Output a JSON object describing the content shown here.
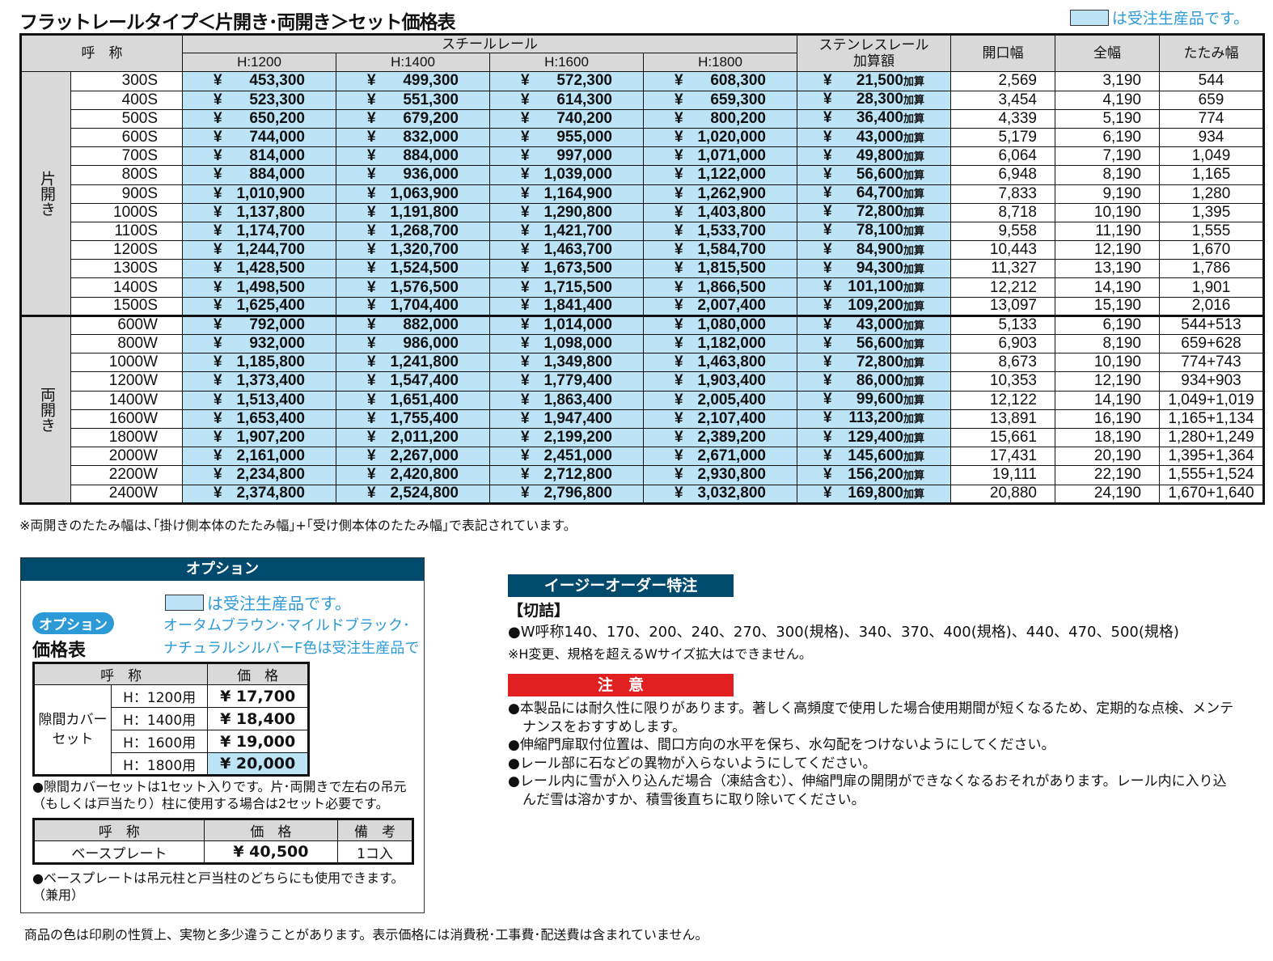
{
  "title": "フラットレールタイプ＜片開き･両開き＞セット価格表",
  "legend": "は受注生産品です。",
  "colors": {
    "made_to_order": "#bde3f7",
    "header": "#d9d9d9",
    "navy": "#004a6e",
    "accent_blue": "#2b9ad6",
    "warning_red": "#e02020"
  },
  "currency": "¥",
  "add_suffix": "加算",
  "headers": {
    "name": "呼　称",
    "steel": "スチールレール",
    "heights": [
      "H:1200",
      "H:1400",
      "H:1600",
      "H:1800"
    ],
    "stainless": "ステンレスレール",
    "stainless2": "加算額",
    "opening": "開口幅",
    "total": "全幅",
    "folded": "たたみ幅"
  },
  "groups": [
    {
      "label": "片開き",
      "rows": [
        [
          "300S",
          "453,300",
          "499,300",
          "572,300",
          "608,300",
          "21,500",
          "2,569",
          "3,190",
          "544"
        ],
        [
          "400S",
          "523,300",
          "551,300",
          "614,300",
          "659,300",
          "28,300",
          "3,454",
          "4,190",
          "659"
        ],
        [
          "500S",
          "650,200",
          "679,200",
          "740,200",
          "800,200",
          "36,400",
          "4,339",
          "5,190",
          "774"
        ],
        [
          "600S",
          "744,000",
          "832,000",
          "955,000",
          "1,020,000",
          "43,000",
          "5,179",
          "6,190",
          "934"
        ],
        [
          "700S",
          "814,000",
          "884,000",
          "997,000",
          "1,071,000",
          "49,800",
          "6,064",
          "7,190",
          "1,049"
        ],
        [
          "800S",
          "884,000",
          "936,000",
          "1,039,000",
          "1,122,000",
          "56,600",
          "6,948",
          "8,190",
          "1,165"
        ],
        [
          "900S",
          "1,010,900",
          "1,063,900",
          "1,164,900",
          "1,262,900",
          "64,700",
          "7,833",
          "9,190",
          "1,280"
        ],
        [
          "1000S",
          "1,137,800",
          "1,191,800",
          "1,290,800",
          "1,403,800",
          "72,800",
          "8,718",
          "10,190",
          "1,395"
        ],
        [
          "1100S",
          "1,174,700",
          "1,268,700",
          "1,421,700",
          "1,533,700",
          "78,100",
          "9,558",
          "11,190",
          "1,555"
        ],
        [
          "1200S",
          "1,244,700",
          "1,320,700",
          "1,463,700",
          "1,584,700",
          "84,900",
          "10,443",
          "12,190",
          "1,670"
        ],
        [
          "1300S",
          "1,428,500",
          "1,524,500",
          "1,673,500",
          "1,815,500",
          "94,300",
          "11,327",
          "13,190",
          "1,786"
        ],
        [
          "1400S",
          "1,498,500",
          "1,576,500",
          "1,715,500",
          "1,866,500",
          "101,100",
          "12,212",
          "14,190",
          "1,901"
        ],
        [
          "1500S",
          "1,625,400",
          "1,704,400",
          "1,841,400",
          "2,007,400",
          "109,200",
          "13,097",
          "15,190",
          "2,016"
        ]
      ]
    },
    {
      "label": "両開き",
      "rows": [
        [
          "600W",
          "792,000",
          "882,000",
          "1,014,000",
          "1,080,000",
          "43,000",
          "5,133",
          "6,190",
          "544+513"
        ],
        [
          "800W",
          "932,000",
          "986,000",
          "1,098,000",
          "1,182,000",
          "56,600",
          "6,903",
          "8,190",
          "659+628"
        ],
        [
          "1000W",
          "1,185,800",
          "1,241,800",
          "1,349,800",
          "1,463,800",
          "72,800",
          "8,673",
          "10,190",
          "774+743"
        ],
        [
          "1200W",
          "1,373,400",
          "1,547,400",
          "1,779,400",
          "1,903,400",
          "86,000",
          "10,353",
          "12,190",
          "934+903"
        ],
        [
          "1400W",
          "1,513,400",
          "1,651,400",
          "1,863,400",
          "2,005,400",
          "99,600",
          "12,122",
          "14,190",
          "1,049+1,019"
        ],
        [
          "1600W",
          "1,653,400",
          "1,755,400",
          "1,947,400",
          "2,107,400",
          "113,200",
          "13,891",
          "16,190",
          "1,165+1,134"
        ],
        [
          "1800W",
          "1,907,200",
          "2,011,200",
          "2,199,200",
          "2,389,200",
          "129,400",
          "15,661",
          "18,190",
          "1,280+1,249"
        ],
        [
          "2000W",
          "2,161,000",
          "2,267,000",
          "2,451,000",
          "2,671,000",
          "145,600",
          "17,431",
          "20,190",
          "1,395+1,364"
        ],
        [
          "2200W",
          "2,234,800",
          "2,420,800",
          "2,712,800",
          "2,930,800",
          "156,200",
          "19,111",
          "22,190",
          "1,555+1,524"
        ],
        [
          "2400W",
          "2,374,800",
          "2,524,800",
          "2,796,800",
          "3,032,800",
          "169,800",
          "20,880",
          "24,190",
          "1,670+1,640"
        ]
      ]
    }
  ],
  "note": "※両開きのたたみ幅は､｢掛け側本体のたたみ幅｣+｢受け側本体のたたみ幅｣で表記されています。",
  "option": {
    "header": "オプション",
    "legend": "は受注生産品です。",
    "pill": "オプション",
    "price_table": "価格表",
    "color_note1": "オータムブラウン･マイルドブラック･",
    "color_note2": "ナチュラルシルバーF色は受注生産品です。",
    "t1": {
      "h_name": "呼　称",
      "h_price": "価　格",
      "item": "隙間カバー\nセット",
      "rows": [
        [
          "H：1200用",
          "¥ 17,700"
        ],
        [
          "H：1400用",
          "¥ 18,400"
        ],
        [
          "H：1600用",
          "¥ 19,000"
        ],
        [
          "H：1800用",
          "¥ 20,000"
        ]
      ]
    },
    "note1": "●隙間カバーセットは1セット入りです。片･両開きで左右の吊元（もしくは戸当たり）柱に使用する場合は2セット必要です。",
    "t2": {
      "h_name": "呼　称",
      "h_price": "価　格",
      "h_note": "備　考",
      "name": "ベースプレート",
      "price": "¥ 40,500",
      "note": "1コ入"
    },
    "note2": "●ベースプレートは吊元柱と戸当柱のどちらにも使用できます。（兼用）"
  },
  "easy": {
    "title": "イージーオーダー特注",
    "sub": "【切詰】",
    "line1": "●W呼称140、170、200、240、270、300(規格)、340、370、400(規格)、440、470、500(規格)",
    "line2": "※H変更、規格を超えるWサイズ拡大はできません。"
  },
  "caution": {
    "title": "注　意",
    "items": [
      "●本製品には耐久性に限りがあります。著しく高頻度で使用した場合使用期間が短くなるため、定期的な点検、メンテナンスをおすすめします。",
      "●伸縮門扉取付位置は、間口方向の水平を保ち、水勾配をつけないようにしてください。",
      "●レール部に石などの異物が入らないようにしてください。",
      "●レール内に雪が入り込んだ場合（凍結含む）、伸縮門扉の開閉ができなくなるおそれがあります。レール内に入り込んだ雪は溶かすか、積雪後直ちに取り除いてください。"
    ]
  },
  "footer": "商品の色は印刷の性質上、実物と多少違うことがあります。表示価格には消費税･工事費･配送費は含まれていません。"
}
